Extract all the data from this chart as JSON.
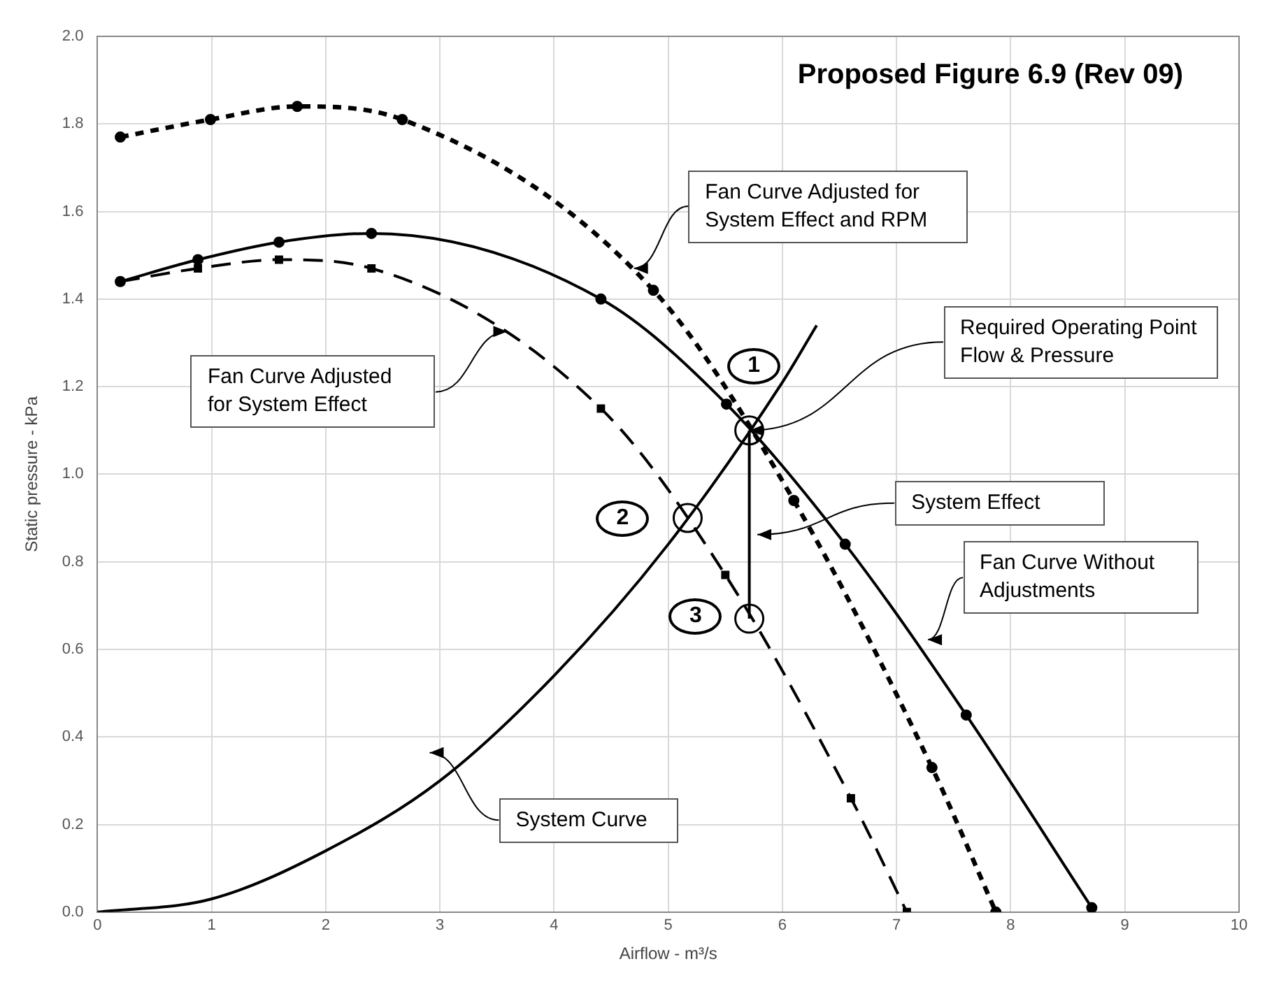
{
  "chart_data": {
    "type": "line",
    "title": "Proposed Figure 6.9 (Rev 09)",
    "xlabel": "Airflow - m³/s",
    "ylabel": "Static pressure - kPa",
    "xlim": [
      0,
      10
    ],
    "xticks": [
      0,
      1,
      2,
      3,
      4,
      5,
      6,
      7,
      8,
      9,
      10
    ],
    "ylim": [
      0,
      2
    ],
    "yticks": [
      {
        "value": 0,
        "label": "0.0"
      },
      {
        "value": 0.2,
        "label": "0.2"
      },
      {
        "value": 0.4,
        "label": "0.4"
      },
      {
        "value": 0.6,
        "label": "0.6"
      },
      {
        "value": 0.8,
        "label": "0.8"
      },
      {
        "value": 1,
        "label": "1.0"
      },
      {
        "value": 1.2,
        "label": "1.2"
      },
      {
        "value": 1.4,
        "label": "1.4"
      },
      {
        "value": 1.6,
        "label": "1.6"
      },
      {
        "value": 1.8,
        "label": "1.8"
      },
      {
        "value": 2,
        "label": "2.0"
      }
    ],
    "grid": true,
    "legend": false,
    "series": [
      {
        "color": "#000000",
        "marker": "circle",
        "line_style": "dotted",
        "x": [
          0.2,
          0.99,
          1.75,
          2.67,
          4.87,
          6.1,
          7.31,
          7.87
        ],
        "values": [
          1.77,
          1.81,
          1.84,
          1.81,
          1.42,
          0.94,
          0.33,
          0
        ]
      },
      {
        "color": "#000000",
        "marker": "circle",
        "line_style": "solid",
        "x": [
          0.2,
          0.88,
          1.59,
          2.4,
          4.41,
          5.51,
          6.55,
          7.61,
          8.71
        ],
        "values": [
          1.44,
          1.49,
          1.53,
          1.55,
          1.4,
          1.16,
          0.84,
          0.45,
          0.01
        ]
      },
      {
        "color": "#000000",
        "marker": "square",
        "line_style": "dashed",
        "x": [
          0.2,
          0.88,
          1.59,
          2.4,
          4.41,
          5.5,
          6.6,
          7.09
        ],
        "values": [
          1.44,
          1.47,
          1.49,
          1.47,
          1.15,
          0.77,
          0.26,
          0
        ]
      },
      {
        "color": "#000000",
        "marker": "none",
        "line_style": "solid",
        "x": [
          0,
          1,
          2,
          3,
          4,
          5,
          6,
          6.3
        ],
        "values": [
          0,
          0.03,
          0.14,
          0.3,
          0.54,
          0.84,
          1.21,
          1.34
        ]
      },
      {
        "color": "#000000",
        "marker": "none",
        "line_style": "solid",
        "x": [
          5.71,
          5.71
        ],
        "values": [
          1.1,
          0.67
        ]
      },
      {
        "type": "scatter",
        "color": "#000000",
        "marker": "circle",
        "x": [
          5.71,
          5.17,
          5.71
        ],
        "values": [
          1.1,
          0.9,
          0.67
        ]
      }
    ],
    "annotations": [
      {
        "text": "Fan Curve Adjusted for System Effect and RPM",
        "x": 4.7,
        "y": 1.47
      },
      {
        "text": "Required Operating Point Flow & Pressure",
        "x": 5.71,
        "y": 1.1
      },
      "Fan Curve Adjusted for System Effect",
      "System Effect",
      "Fan Curve Without Adjustments",
      "System Curve",
      "1",
      "2",
      "3"
    ]
  }
}
